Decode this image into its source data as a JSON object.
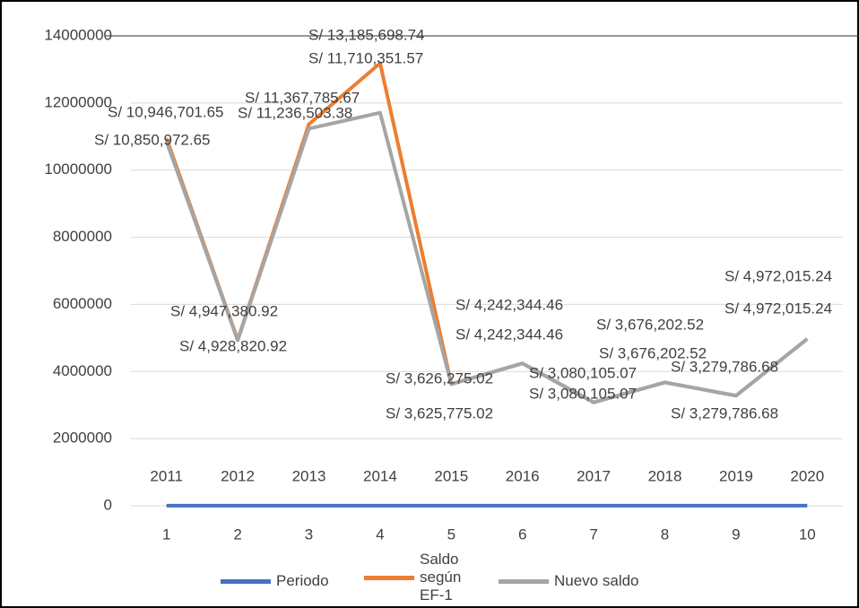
{
  "chart_data": {
    "type": "line",
    "categories": [
      "1",
      "2",
      "3",
      "4",
      "5",
      "6",
      "7",
      "8",
      "9",
      "10"
    ],
    "ylim": [
      0,
      14000000
    ],
    "yticks": [
      0,
      2000000,
      4000000,
      6000000,
      8000000,
      10000000,
      12000000,
      14000000
    ],
    "grid": true,
    "legend": "bottom",
    "series": [
      {
        "name": "Periodo",
        "color": "#4472c4",
        "values": [
          2011,
          2012,
          2013,
          2014,
          2015,
          2016,
          2017,
          2018,
          2019,
          2020
        ]
      },
      {
        "name": "Saldo según EF-1",
        "color": "#ed7d31",
        "values": [
          10946701.65,
          4947380.92,
          11367785.67,
          13185698.74,
          3626275.02,
          4242344.46,
          3080105.07,
          3676202.52,
          3279786.68,
          4972015.24
        ],
        "value_labels": [
          "S/ 10,946,701.65",
          "S/ 4,947,380.92",
          "S/ 11,367,785.67",
          "S/ 13,185,698.74",
          "S/ 3,626,275.02",
          "S/ 4,242,344.46",
          "S/ 3,080,105.07",
          "S/ 3,676,202.52",
          "S/ 3,279,786.68",
          "S/ 4,972,015.24"
        ]
      },
      {
        "name": "Nuevo saldo",
        "color": "#a5a5a5",
        "values": [
          10850972.65,
          4928820.92,
          11236503.38,
          11710351.57,
          3625775.02,
          4242344.46,
          3080105.07,
          3676202.52,
          3279786.68,
          4972015.24
        ],
        "value_labels": [
          "S/ 10,850,972.65",
          "S/ 4,928,820.92",
          "S/ 11,236,503.38",
          "S/ 11,710,351.57",
          "S/ 3,625,775.02",
          "S/ 4,242,344.46",
          "S/ 3,080,105.07",
          "S/ 3,676,202.52",
          "S/ 3,279,786.68",
          "S/ 4,972,015.24"
        ]
      }
    ]
  }
}
